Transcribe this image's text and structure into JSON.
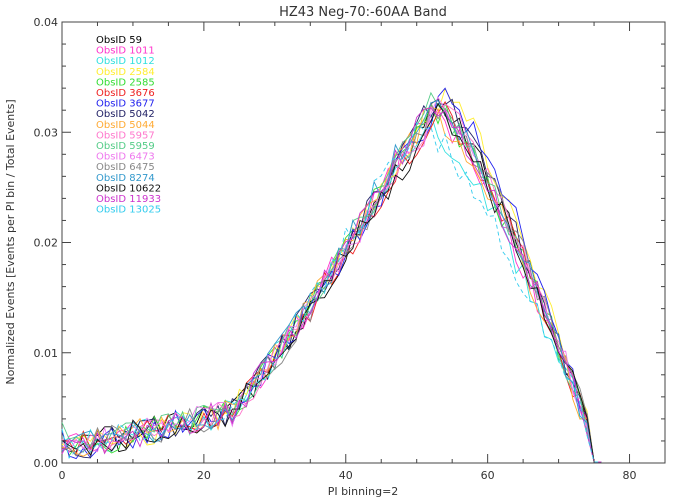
{
  "chart_data": {
    "type": "line",
    "title": "HZ43 Neg-70:-60AA Band",
    "xlabel": "PI binning=2",
    "ylabel": "Normalized Events [Events per PI bin / Total Events]",
    "xlim": [
      0,
      85
    ],
    "ylim": [
      0,
      0.04
    ],
    "x_ticks": [
      0,
      20,
      40,
      60,
      80
    ],
    "x_tick_labels": [
      "0",
      "20",
      "40",
      "60",
      "80"
    ],
    "y_ticks": [
      0,
      0.01,
      0.02,
      0.03,
      0.04
    ],
    "y_tick_labels": [
      "0.00",
      "0.01",
      "0.02",
      "0.03",
      "0.04"
    ],
    "grid": false,
    "legend_position": "top-left",
    "series": [
      {
        "name": "ObsID 59",
        "color": "#000000",
        "peak_x": 53,
        "peak_y": 0.0325
      },
      {
        "name": "ObsID 1011",
        "color": "#ff33cc",
        "peak_x": 52,
        "peak_y": 0.032
      },
      {
        "name": "ObsID 1012",
        "color": "#33e0e0",
        "peak_x": 51,
        "peak_y": 0.031
      },
      {
        "name": "ObsID 2584",
        "color": "#ffee33",
        "peak_x": 54,
        "peak_y": 0.0335
      },
      {
        "name": "ObsID 2585",
        "color": "#33dd33",
        "peak_x": 52,
        "peak_y": 0.0325
      },
      {
        "name": "ObsID 3676",
        "color": "#ee2222",
        "peak_x": 53,
        "peak_y": 0.032
      },
      {
        "name": "ObsID 3677",
        "color": "#2222ee",
        "peak_x": 54,
        "peak_y": 0.0335
      },
      {
        "name": "ObsID 5042",
        "color": "#222266",
        "peak_x": 53,
        "peak_y": 0.0335
      },
      {
        "name": "ObsID 5044",
        "color": "#ffaa33",
        "peak_x": 52,
        "peak_y": 0.032
      },
      {
        "name": "ObsID 5957",
        "color": "#ff77cc",
        "peak_x": 53,
        "peak_y": 0.0325
      },
      {
        "name": "ObsID 5959",
        "color": "#55cc88",
        "peak_x": 52,
        "peak_y": 0.0325
      },
      {
        "name": "ObsID 6473",
        "color": "#ee77ee",
        "peak_x": 53,
        "peak_y": 0.032
      },
      {
        "name": "ObsID 6475",
        "color": "#888888",
        "peak_x": 53,
        "peak_y": 0.0325
      },
      {
        "name": "ObsID 8274",
        "color": "#3399cc",
        "peak_x": 52,
        "peak_y": 0.033
      },
      {
        "name": "ObsID 10622",
        "color": "#111111",
        "peak_x": 53,
        "peak_y": 0.0315
      },
      {
        "name": "ObsID 11933",
        "color": "#cc33cc",
        "peak_x": 52,
        "peak_y": 0.0325
      },
      {
        "name": "ObsID 13025",
        "color": "#33ccee",
        "peak_x": 50,
        "peak_y": 0.031,
        "dashed": true
      }
    ]
  }
}
